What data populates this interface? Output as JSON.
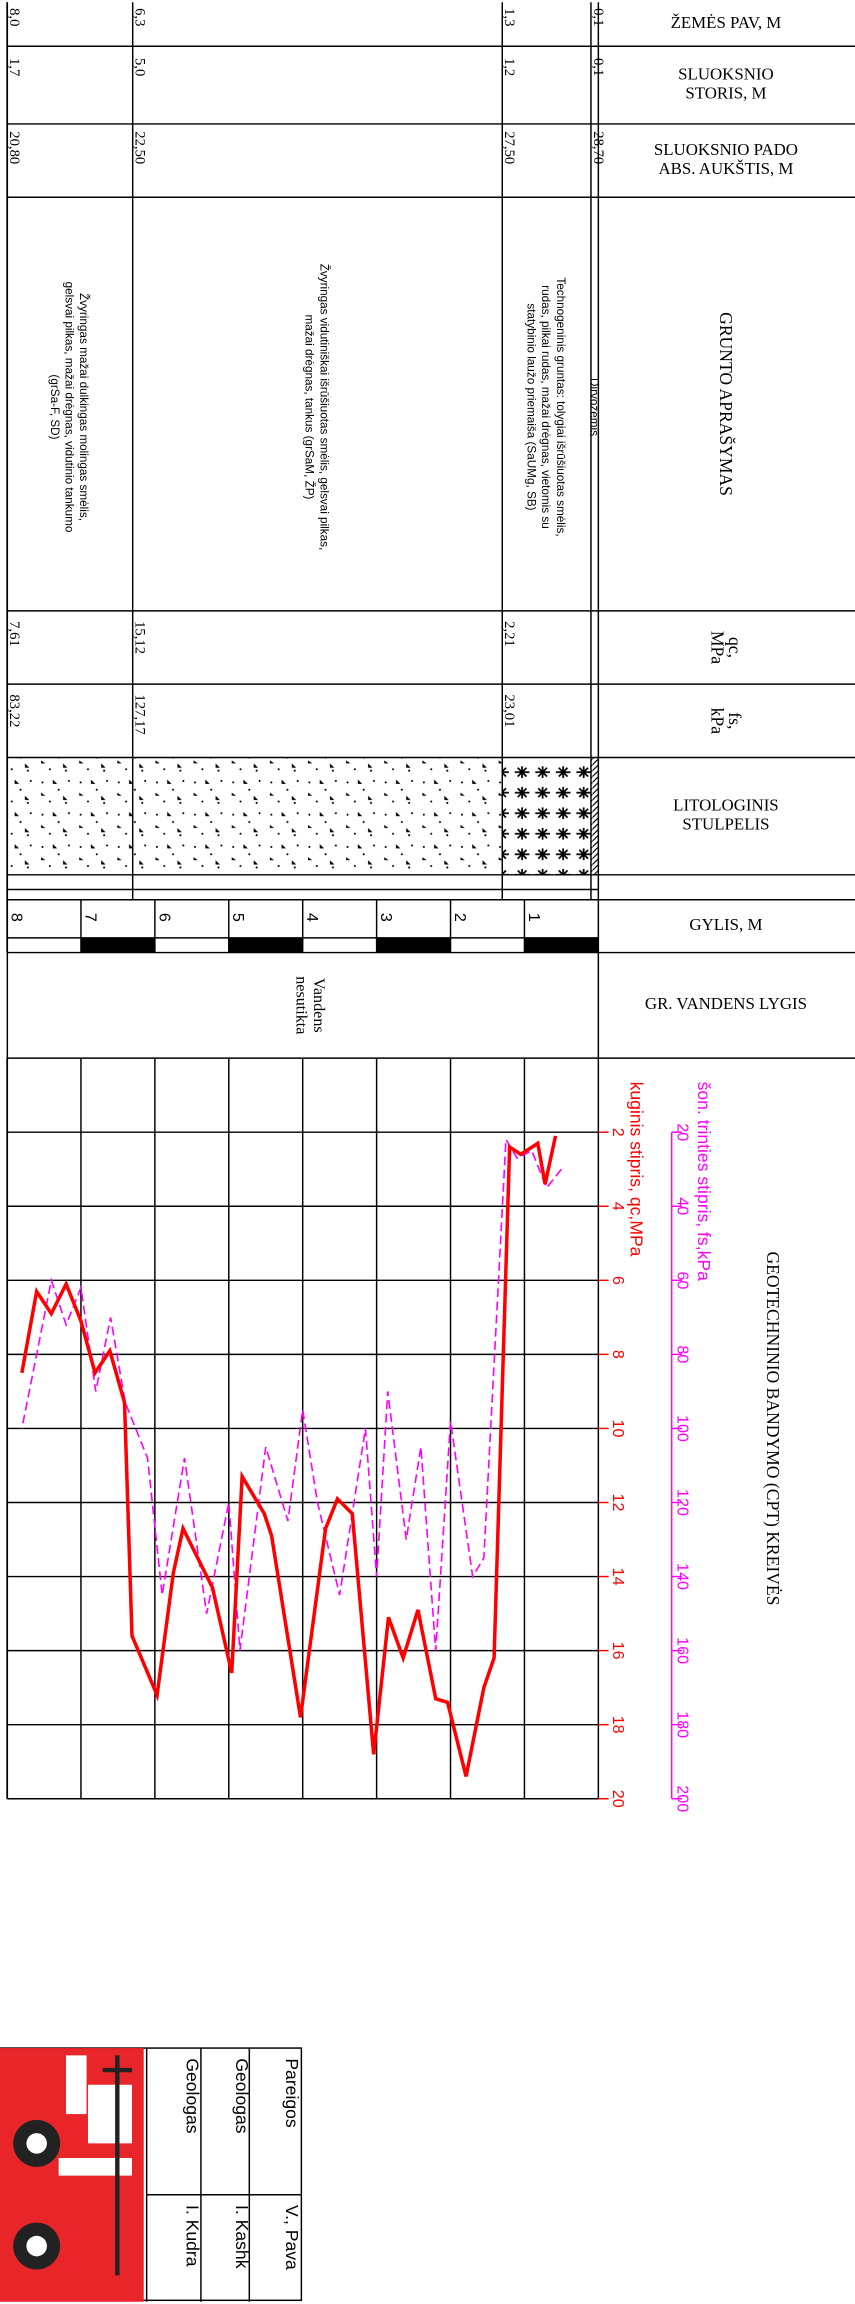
{
  "columns": {
    "surface": [
      "ŽEMĖS PAV, M"
    ],
    "thickness": [
      "SLUOKSNIO",
      "STORIS, M"
    ],
    "elevation": [
      "SLUOKSNIO PADO",
      "ABS. AUKŠTIS, M"
    ],
    "description": [
      "GRUNTO APRAŠYMAS"
    ],
    "qc": [
      "qc,",
      "MPa"
    ],
    "fs": [
      "fs,",
      "kPa"
    ],
    "lithology": [
      "LITOLOGINIS",
      "STULPELIS"
    ],
    "depth": [
      "GYLIS, M"
    ],
    "water": [
      "GR. VANDENS LYGIS"
    ],
    "cpt": [
      "GEOTECHNINIO BANDYMO (CPT) KREIVĖS"
    ]
  },
  "layers": [
    {
      "depth": "0,1",
      "thickness": "0,1",
      "elevation": "28,70",
      "description": [
        "Dirvožemis"
      ]
    },
    {
      "depth": "1,3",
      "thickness": "1,2",
      "elevation": "27,50",
      "description": [
        "Technogeninis gruntas: tolygiai išrūšiuotas smėlis,",
        "rudas, pilkai rudas, mažai drėgnas, vietomis su",
        "statybinio laužo priemaiša (SaUMg, SB)"
      ],
      "qc": "2,21",
      "fs": "23,01"
    },
    {
      "depth": "6,3",
      "thickness": "5,0",
      "elevation": "22,50",
      "description": [
        "Žvyringas vidutiniškai išrūšiuotas smėlis, gelsvai pilkas,",
        "mažai drėgnas, tankus (grSaM, ŽP)"
      ],
      "qc": "15,12",
      "fs": "127,17"
    },
    {
      "depth": "8,0",
      "thickness": "1,7",
      "elevation": "20,80",
      "description": [
        "Žvyringas mažai dulkingas molingas smėlis,",
        "gelsvai pilkas, mažai drėgnas, vidutinio tankumo",
        "(grSa-F, SD)"
      ],
      "qc": "7,61",
      "fs": "83,22"
    }
  ],
  "depth_scale": [
    1,
    2,
    3,
    4,
    5,
    6,
    7,
    8
  ],
  "water_note": [
    "Vandens",
    "nesutikta"
  ],
  "cpt": {
    "qc_label": "kuginis stipris, qc,MPa",
    "qc_color": "#ff0000",
    "qc_ticks": [
      2,
      4,
      6,
      8,
      10,
      12,
      14,
      16,
      18,
      20
    ],
    "fs_label": "šon. trinties stipris, fs,kPa",
    "fs_color": "#ff00ff",
    "fs_ticks": [
      20,
      40,
      60,
      80,
      100,
      120,
      140,
      160,
      180,
      200
    ],
    "qc": {
      "depth": [
        0.58,
        0.72,
        0.82,
        1.05,
        1.2,
        1.41,
        1.55,
        1.79,
        2.04,
        2.2,
        2.44,
        2.64,
        2.84,
        3.04,
        3.33,
        3.53,
        3.69,
        4.03,
        4.42,
        4.52,
        4.82,
        4.96,
        5.22,
        5.62,
        5.75,
        5.97,
        6.31,
        6.41,
        6.61,
        6.81,
        7.0,
        7.2,
        7.4,
        7.6,
        7.8
      ],
      "values": [
        2.1,
        3.4,
        2.3,
        2.6,
        2.4,
        16.2,
        17.0,
        19.4,
        17.4,
        17.3,
        14.9,
        16.2,
        15.1,
        18.8,
        12.3,
        11.9,
        12.7,
        17.8,
        12.9,
        12.3,
        11.3,
        16.6,
        14.3,
        12.7,
        13.9,
        17.2,
        15.6,
        9.3,
        7.9,
        8.5,
        7.1,
        6.1,
        6.9,
        6.3,
        8.5
      ]
    },
    "fs": {
      "depth": [
        0.5,
        0.7,
        0.9,
        1.1,
        1.25,
        1.55,
        1.7,
        2.0,
        2.2,
        2.4,
        2.6,
        2.85,
        3.0,
        3.15,
        3.5,
        3.8,
        4.0,
        4.2,
        4.5,
        4.85,
        5.0,
        5.3,
        5.6,
        5.9,
        6.1,
        6.4,
        6.6,
        6.8,
        7.0,
        7.2,
        7.4,
        7.6,
        7.8
      ],
      "values": [
        30,
        35,
        25,
        27,
        22,
        135,
        140,
        98,
        160,
        105,
        130,
        90,
        140,
        100,
        145,
        120,
        95,
        125,
        105,
        160,
        120,
        150,
        108,
        145,
        108,
        93,
        70,
        90,
        62,
        72,
        60,
        80,
        100
      ]
    }
  },
  "title_block": [
    [
      "Pareigos",
      "V., Pava"
    ],
    [
      "Geologas",
      "I. Kashk"
    ],
    [
      "Geologas",
      "I. Kudra"
    ]
  ]
}
